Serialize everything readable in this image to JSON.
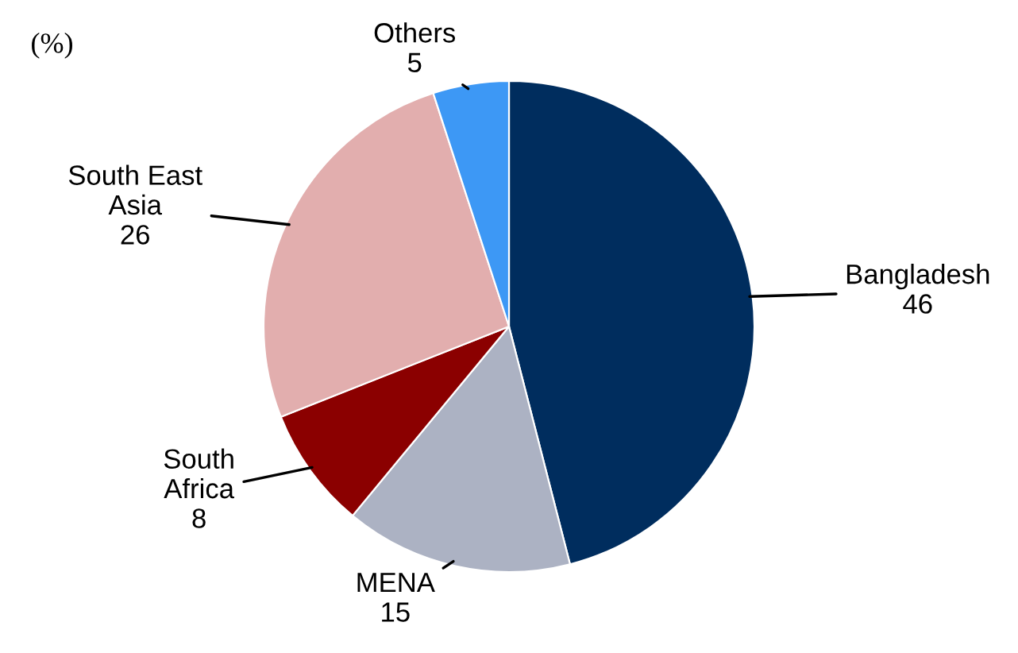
{
  "chart_data": {
    "type": "pie",
    "categories": [
      "Bangladesh",
      "MENA",
      "South\nAfrica",
      "South East\nAsia",
      "Others"
    ],
    "values": [
      46,
      15,
      8,
      26,
      5
    ],
    "colors": [
      "#002d5e",
      "#acb2c3",
      "#8b0000",
      "#e2aeae",
      "#3d98f5"
    ],
    "data_labels": true,
    "annotations": [
      "(%)"
    ]
  }
}
